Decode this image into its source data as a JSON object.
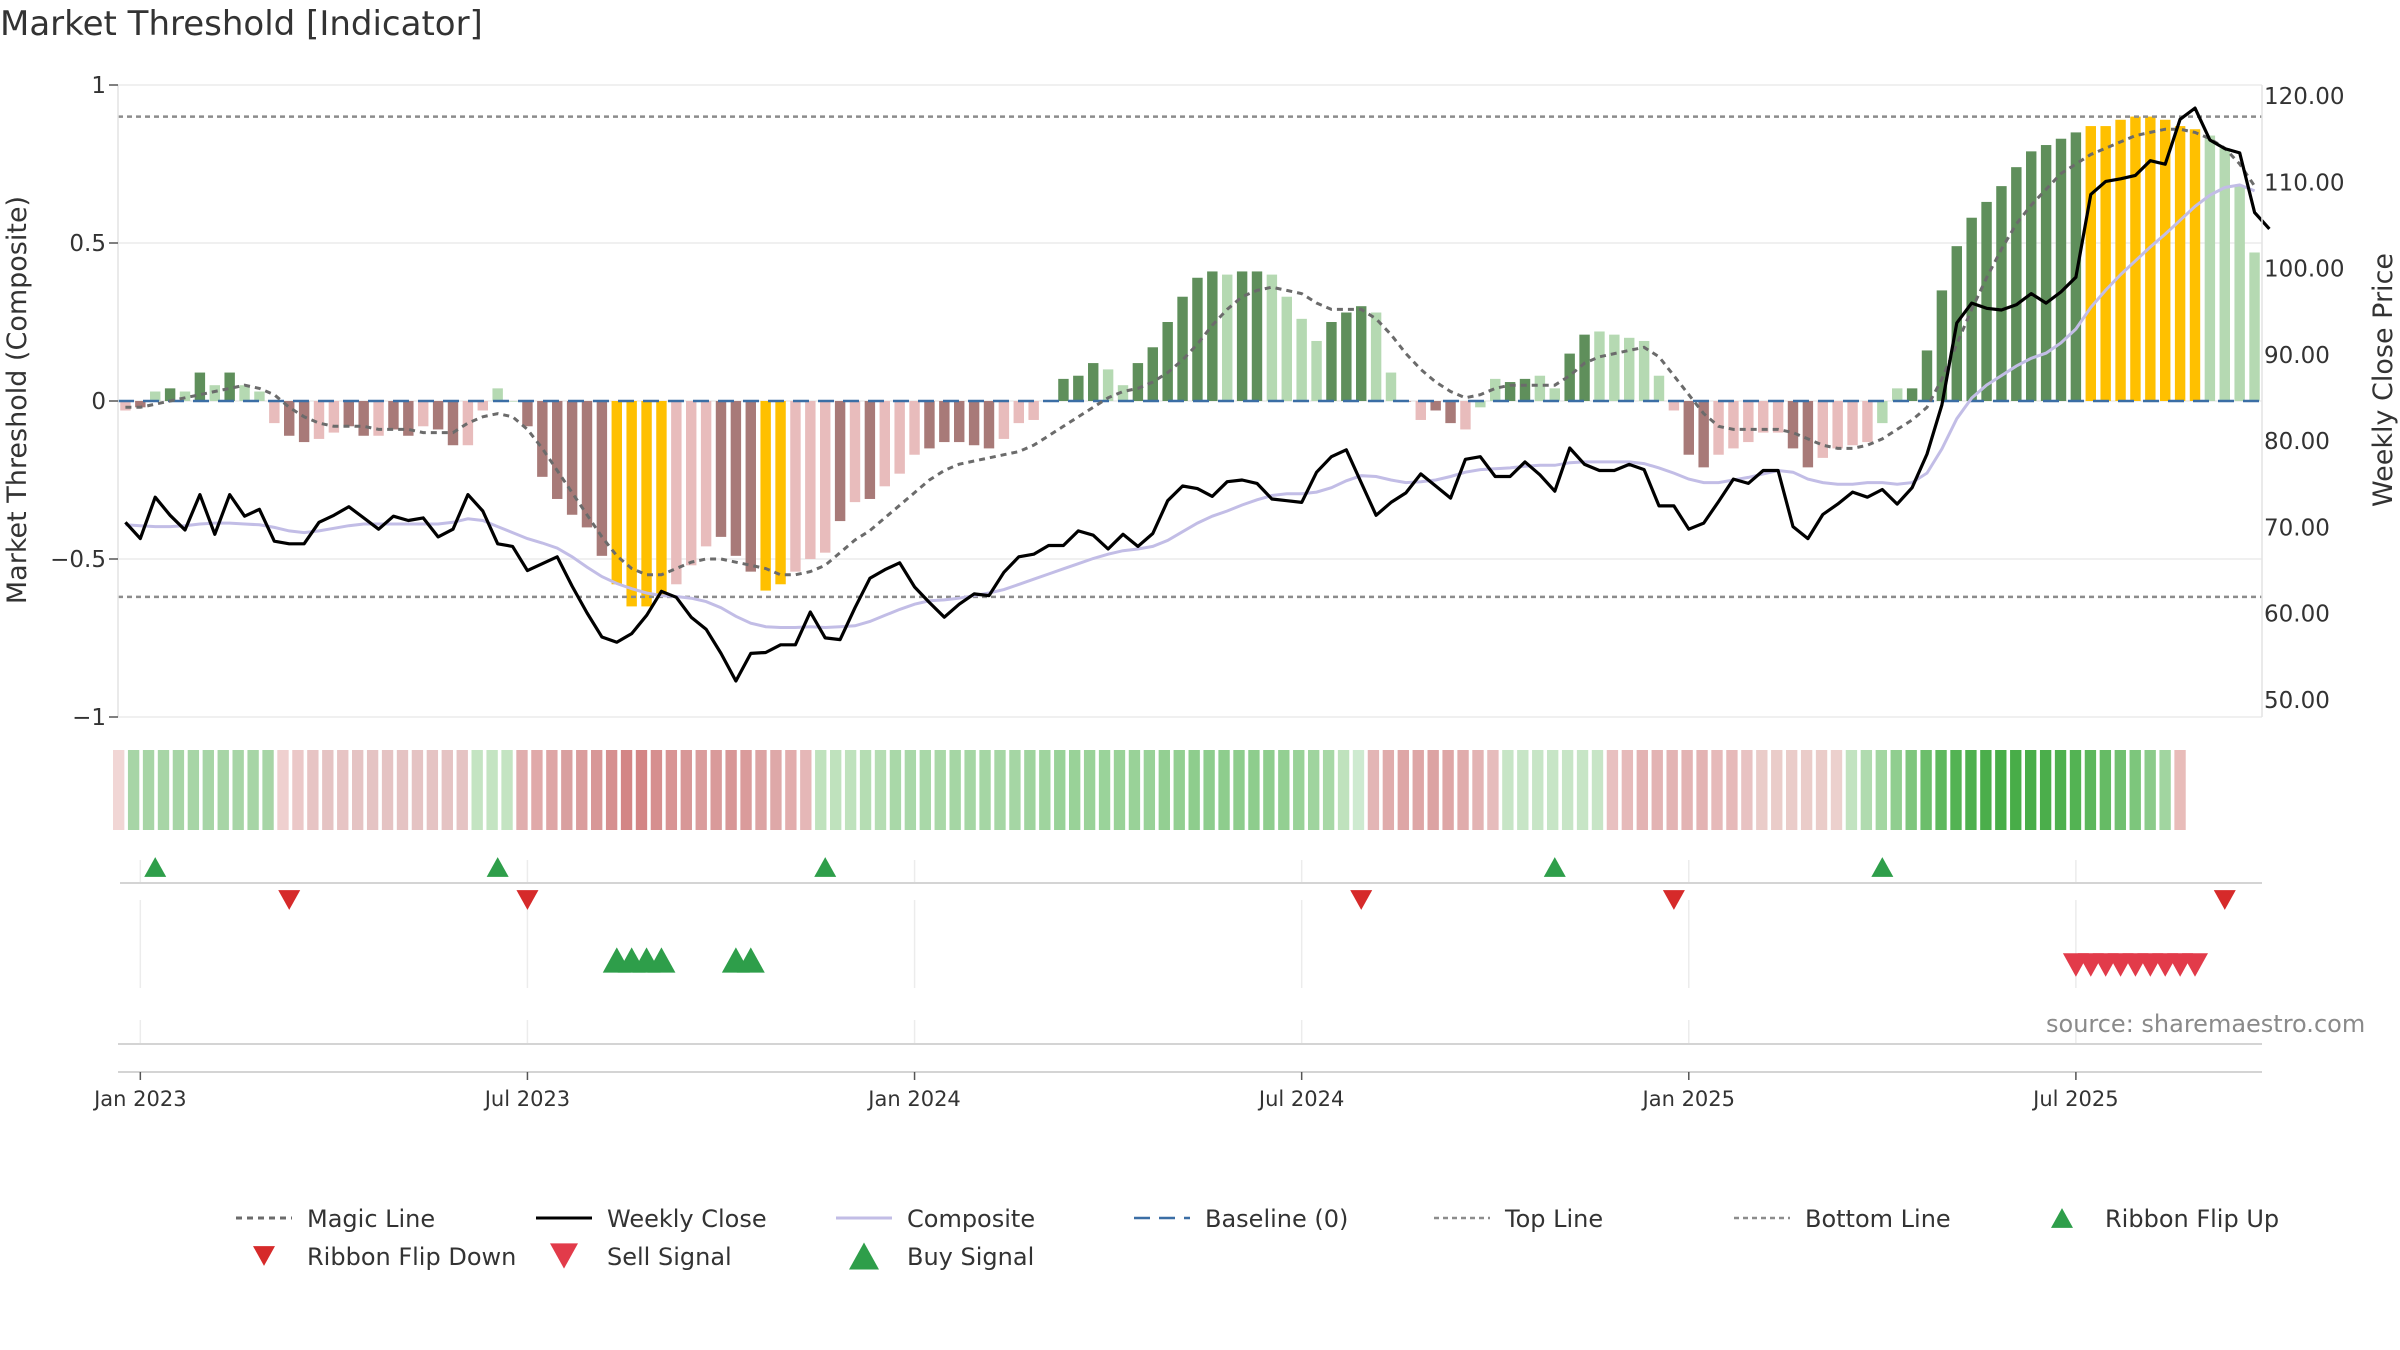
{
  "title": "Market Threshold [Indicator]",
  "source": "source: sharemaestro.com",
  "chart_data": {
    "type": "bar",
    "title": "Market Threshold [Indicator]",
    "ylabel": "Market Threshold (Composite)",
    "y2label": "Weekly Close Price",
    "ylim": [
      -1,
      1
    ],
    "y2lim": [
      47,
      122
    ],
    "y_ticks": [
      {
        "value": 1,
        "label": "1"
      },
      {
        "value": 0.5,
        "label": "0.5"
      },
      {
        "value": 0,
        "label": "0"
      },
      {
        "value": -0.5,
        "label": "−0.5"
      },
      {
        "value": -1,
        "label": "−1"
      }
    ],
    "y2_ticks": [
      {
        "value": 120,
        "label": "120.00"
      },
      {
        "value": 110,
        "label": "110.00"
      },
      {
        "value": 100,
        "label": "100.00"
      },
      {
        "value": 90,
        "label": "90.00"
      },
      {
        "value": 80,
        "label": "80.00"
      },
      {
        "value": 70,
        "label": "70.00"
      },
      {
        "value": 60,
        "label": "60.00"
      },
      {
        "value": 50,
        "label": "50.00"
      }
    ],
    "x_ticks": [
      {
        "week": 1,
        "label": "Jan 2023"
      },
      {
        "week": 27,
        "label": "Jul 2023"
      },
      {
        "week": 53,
        "label": "Jan 2024"
      },
      {
        "week": 79,
        "label": "Jul 2024"
      },
      {
        "week": 105,
        "label": "Jan 2025"
      },
      {
        "week": 131,
        "label": "Jul 2025"
      }
    ],
    "top_line": 0.9,
    "bottom_line": -0.62,
    "baseline": 0,
    "composite_bars": [
      -0.03,
      -0.02,
      0.03,
      0.04,
      0.03,
      0.09,
      0.05,
      0.09,
      0.05,
      0.03,
      -0.07,
      -0.11,
      -0.13,
      -0.12,
      -0.1,
      -0.08,
      -0.11,
      -0.11,
      -0.09,
      -0.11,
      -0.08,
      -0.09,
      -0.14,
      -0.14,
      -0.03,
      0.04,
      0.0,
      -0.08,
      -0.24,
      -0.31,
      -0.36,
      -0.4,
      -0.49,
      -0.58,
      -0.65,
      -0.65,
      -0.62,
      -0.58,
      -0.52,
      -0.46,
      -0.43,
      -0.49,
      -0.54,
      -0.6,
      -0.58,
      -0.54,
      -0.5,
      -0.48,
      -0.38,
      -0.32,
      -0.31,
      -0.27,
      -0.23,
      -0.17,
      -0.15,
      -0.13,
      -0.13,
      -0.14,
      -0.15,
      -0.12,
      -0.07,
      -0.06,
      0.0,
      0.07,
      0.08,
      0.12,
      0.1,
      0.05,
      0.12,
      0.17,
      0.25,
      0.33,
      0.39,
      0.41,
      0.4,
      0.41,
      0.41,
      0.4,
      0.33,
      0.26,
      0.19,
      0.25,
      0.28,
      0.3,
      0.28,
      0.09,
      0.0,
      -0.06,
      -0.03,
      -0.07,
      -0.09,
      -0.02,
      0.07,
      0.06,
      0.07,
      0.08,
      0.04,
      0.15,
      0.21,
      0.22,
      0.21,
      0.2,
      0.19,
      0.08,
      -0.03,
      -0.17,
      -0.21,
      -0.17,
      -0.15,
      -0.13,
      -0.1,
      -0.1,
      -0.15,
      -0.21,
      -0.18,
      -0.15,
      -0.14,
      -0.13,
      -0.07,
      0.04,
      0.04,
      0.16,
      0.35,
      0.49,
      0.58,
      0.63,
      0.68,
      0.74,
      0.79,
      0.81,
      0.83,
      0.85,
      0.87,
      0.87,
      0.89,
      0.9,
      0.9,
      0.89,
      0.87,
      0.86,
      0.84,
      0.8,
      0.68,
      0.47
    ],
    "bar_colors": [
      "#e8bcbc",
      "#a87a78",
      "#b5d9b2",
      "#5f8f5b",
      "#b5d9b2",
      "#5f8f5b",
      "#b5d9b2",
      "#5f8f5b",
      "#b5d9b2",
      "#b5d9b2",
      "#e8bcbc",
      "#a87a78",
      "#a87a78",
      "#e8bcbc",
      "#e8bcbc",
      "#a87a78",
      "#a87a78",
      "#e8bcbc",
      "#a87a78",
      "#a87a78",
      "#e8bcbc",
      "#a87a78",
      "#a87a78",
      "#e8bcbc",
      "#e8bcbc",
      "#b5d9b2",
      "#b5d9b2",
      "#a87a78",
      "#a87a78",
      "#a87a78",
      "#a87a78",
      "#a87a78",
      "#a87a78",
      "#ffc000",
      "#ffc000",
      "#ffc000",
      "#ffc000",
      "#e8bcbc",
      "#e8bcbc",
      "#e8bcbc",
      "#a87a78",
      "#a87a78",
      "#a87a78",
      "#ffc000",
      "#ffc000",
      "#e8bcbc",
      "#e8bcbc",
      "#e8bcbc",
      "#a87a78",
      "#e8bcbc",
      "#a87a78",
      "#e8bcbc",
      "#e8bcbc",
      "#e8bcbc",
      "#a87a78",
      "#a87a78",
      "#a87a78",
      "#a87a78",
      "#a87a78",
      "#e8bcbc",
      "#e8bcbc",
      "#e8bcbc",
      "#b5d9b2",
      "#5f8f5b",
      "#5f8f5b",
      "#5f8f5b",
      "#b5d9b2",
      "#b5d9b2",
      "#5f8f5b",
      "#5f8f5b",
      "#5f8f5b",
      "#5f8f5b",
      "#5f8f5b",
      "#5f8f5b",
      "#b5d9b2",
      "#5f8f5b",
      "#5f8f5b",
      "#b5d9b2",
      "#b5d9b2",
      "#b5d9b2",
      "#b5d9b2",
      "#5f8f5b",
      "#5f8f5b",
      "#5f8f5b",
      "#b5d9b2",
      "#b5d9b2",
      "#a87a78",
      "#e8bcbc",
      "#a87a78",
      "#a87a78",
      "#e8bcbc",
      "#b5d9b2",
      "#b5d9b2",
      "#5f8f5b",
      "#5f8f5b",
      "#b5d9b2",
      "#b5d9b2",
      "#5f8f5b",
      "#5f8f5b",
      "#b5d9b2",
      "#b5d9b2",
      "#b5d9b2",
      "#b5d9b2",
      "#b5d9b2",
      "#e8bcbc",
      "#a87a78",
      "#a87a78",
      "#e8bcbc",
      "#e8bcbc",
      "#e8bcbc",
      "#e8bcbc",
      "#e8bcbc",
      "#a87a78",
      "#a87a78",
      "#e8bcbc",
      "#e8bcbc",
      "#e8bcbc",
      "#e8bcbc",
      "#b5d9b2",
      "#b5d9b2",
      "#5f8f5b",
      "#5f8f5b",
      "#5f8f5b",
      "#5f8f5b",
      "#5f8f5b",
      "#5f8f5b",
      "#5f8f5b",
      "#5f8f5b",
      "#5f8f5b",
      "#5f8f5b",
      "#5f8f5b",
      "#5f8f5b",
      "#ffc000",
      "#ffc000",
      "#ffc000",
      "#ffc000",
      "#ffc000",
      "#ffc000",
      "#ffc000",
      "#ffc000",
      "#b5d9b2",
      "#b5d9b2",
      "#b5d9b2",
      "#b5d9b2",
      "#b5d9b2"
    ],
    "weekly_close": [
      70.6,
      68.7,
      73.5,
      71.4,
      69.7,
      73.8,
      69.2,
      73.8,
      71.3,
      72.1,
      68.4,
      68.1,
      68.1,
      70.6,
      71.4,
      72.4,
      71.1,
      69.8,
      71.3,
      70.8,
      71.1,
      68.9,
      69.8,
      73.8,
      71.9,
      68.1,
      67.8,
      65.0,
      65.8,
      66.6,
      63.2,
      60.1,
      57.3,
      56.7,
      57.7,
      59.8,
      62.6,
      61.9,
      59.6,
      58.2,
      55.4,
      52.2,
      55.4,
      55.5,
      56.4,
      56.4,
      60.2,
      57.2,
      57.0,
      60.7,
      64.1,
      65.1,
      65.9,
      63.1,
      61.3,
      59.6,
      61.1,
      62.3,
      62.1,
      64.8,
      66.6,
      66.9,
      67.9,
      67.9,
      69.6,
      69.1,
      67.5,
      69.2,
      67.8,
      69.3,
      73.1,
      74.8,
      74.5,
      73.6,
      75.3,
      75.5,
      75.1,
      73.3,
      73.1,
      72.9,
      76.4,
      78.2,
      79.0,
      75.2,
      71.4,
      72.9,
      74.0,
      76.2,
      74.8,
      73.4,
      77.9,
      78.2,
      75.9,
      75.9,
      77.6,
      76.1,
      74.2,
      79.2,
      77.3,
      76.6,
      76.6,
      77.3,
      76.7,
      72.5,
      72.5,
      69.8,
      70.5,
      73.0,
      75.6,
      75.1,
      76.6,
      76.6,
      70.1,
      68.7,
      71.5,
      72.7,
      74.1,
      73.5,
      74.4,
      72.7,
      74.6,
      78.5,
      84.2,
      93.7,
      96.0,
      95.4,
      95.2,
      95.8,
      97.1,
      96.0,
      97.3,
      99.0,
      108.6,
      110.1,
      110.4,
      110.8,
      112.5,
      112.1,
      117.3,
      118.6,
      114.9,
      113.9,
      113.4,
      106.5,
      104.6
    ],
    "composite_line": [
      70.3,
      70.2,
      70.1,
      70.1,
      70.2,
      70.4,
      70.5,
      70.5,
      70.4,
      70.3,
      70.0,
      69.6,
      69.4,
      69.6,
      69.9,
      70.2,
      70.4,
      70.4,
      70.4,
      70.4,
      70.4,
      70.4,
      70.6,
      71.0,
      70.8,
      70.1,
      69.4,
      68.7,
      68.2,
      67.6,
      66.6,
      65.4,
      64.3,
      63.5,
      62.9,
      62.4,
      62.1,
      62.0,
      61.8,
      61.4,
      60.7,
      59.7,
      58.9,
      58.5,
      58.4,
      58.4,
      58.5,
      58.4,
      58.5,
      58.6,
      59.1,
      59.8,
      60.5,
      61.1,
      61.5,
      61.6,
      61.8,
      62.1,
      62.4,
      62.8,
      63.4,
      64.0,
      64.6,
      65.2,
      65.8,
      66.4,
      66.9,
      67.3,
      67.5,
      67.8,
      68.5,
      69.5,
      70.5,
      71.3,
      71.9,
      72.6,
      73.2,
      73.7,
      73.9,
      73.9,
      74.1,
      74.6,
      75.4,
      76.0,
      75.9,
      75.5,
      75.2,
      75.3,
      75.5,
      75.9,
      76.4,
      76.7,
      76.8,
      76.9,
      77.1,
      77.2,
      77.2,
      77.5,
      77.6,
      77.6,
      77.6,
      77.6,
      77.4,
      76.9,
      76.3,
      75.6,
      75.2,
      75.2,
      75.5,
      75.8,
      76.2,
      76.6,
      76.4,
      75.6,
      75.2,
      75.0,
      75.0,
      75.2,
      75.2,
      75.0,
      75.2,
      76.3,
      79.1,
      82.6,
      85.0,
      86.5,
      87.6,
      88.7,
      89.6,
      90.2,
      91.4,
      93.0,
      95.5,
      97.5,
      99.3,
      100.9,
      102.5,
      104.0,
      105.6,
      107.2,
      108.5,
      109.4,
      109.7,
      109.0
    ],
    "magic_line": [
      -0.02,
      -0.02,
      -0.01,
      0.0,
      0.01,
      0.02,
      0.03,
      0.04,
      0.05,
      0.04,
      0.02,
      -0.02,
      -0.05,
      -0.07,
      -0.08,
      -0.08,
      -0.08,
      -0.09,
      -0.09,
      -0.09,
      -0.1,
      -0.1,
      -0.1,
      -0.07,
      -0.05,
      -0.04,
      -0.05,
      -0.09,
      -0.15,
      -0.22,
      -0.29,
      -0.36,
      -0.43,
      -0.49,
      -0.53,
      -0.55,
      -0.55,
      -0.53,
      -0.51,
      -0.5,
      -0.5,
      -0.51,
      -0.52,
      -0.53,
      -0.55,
      -0.55,
      -0.54,
      -0.52,
      -0.48,
      -0.44,
      -0.41,
      -0.37,
      -0.33,
      -0.29,
      -0.25,
      -0.22,
      -0.2,
      -0.19,
      -0.18,
      -0.17,
      -0.16,
      -0.14,
      -0.11,
      -0.08,
      -0.05,
      -0.02,
      0.01,
      0.03,
      0.04,
      0.06,
      0.09,
      0.13,
      0.18,
      0.24,
      0.29,
      0.33,
      0.35,
      0.36,
      0.35,
      0.34,
      0.31,
      0.29,
      0.29,
      0.29,
      0.26,
      0.21,
      0.15,
      0.1,
      0.06,
      0.03,
      0.01,
      0.02,
      0.04,
      0.05,
      0.05,
      0.05,
      0.05,
      0.08,
      0.12,
      0.14,
      0.15,
      0.16,
      0.17,
      0.14,
      0.08,
      0.02,
      -0.04,
      -0.08,
      -0.09,
      -0.09,
      -0.09,
      -0.09,
      -0.1,
      -0.12,
      -0.14,
      -0.15,
      -0.15,
      -0.14,
      -0.12,
      -0.09,
      -0.06,
      -0.02,
      0.07,
      0.18,
      0.29,
      0.39,
      0.48,
      0.56,
      0.62,
      0.67,
      0.72,
      0.75,
      0.78,
      0.8,
      0.82,
      0.84,
      0.85,
      0.86,
      0.86,
      0.85,
      0.83,
      0.8,
      0.75,
      0.68
    ],
    "ribbon_colors": [
      "#f1d6d5",
      "#a7d5a6",
      "#a7d5a6",
      "#a7d5a6",
      "#a7d5a6",
      "#a7d5a6",
      "#a7d5a6",
      "#a7d5a6",
      "#a7d5a6",
      "#a7d5a6",
      "#a7d5a6",
      "#efd0cf",
      "#ebc8c8",
      "#e7c4c4",
      "#e5c3c3",
      "#e7c4c4",
      "#e5c3c3",
      "#e5c3c3",
      "#e5c3c3",
      "#e5c3c3",
      "#e5c3c3",
      "#e5c3c3",
      "#e5c3c3",
      "#e5c3c3",
      "#c4e4c2",
      "#c4e4c2",
      "#c4e4c2",
      "#e0aeae",
      "#e0a9a9",
      "#dea5a5",
      "#d9a0a0",
      "#da9d9d",
      "#d89797",
      "#d68f8f",
      "#d38585",
      "#d38585",
      "#d68f8f",
      "#d89494",
      "#d89797",
      "#da9c9c",
      "#d99a9a",
      "#d89696",
      "#da9b9b",
      "#dca3a3",
      "#dea8a8",
      "#e2adad",
      "#e5b7b7",
      "#bfe2bd",
      "#bfe2bd",
      "#bfe2bd",
      "#b5ddb3",
      "#b5ddb3",
      "#a9d8a8",
      "#a9d8a8",
      "#a9d8a8",
      "#a9d8a8",
      "#a5d6a4",
      "#a5d6a4",
      "#a5d6a4",
      "#a5d6a4",
      "#a5d6a4",
      "#9fd49e",
      "#9fd49e",
      "#99d298",
      "#99d298",
      "#99d298",
      "#9ad39a",
      "#99d298",
      "#99d298",
      "#99d298",
      "#93cf92",
      "#93cf92",
      "#8ecd8d",
      "#8ecd8d",
      "#8ecd8d",
      "#8ecd8d",
      "#8ecd8d",
      "#8ecd8d",
      "#93cf92",
      "#99d298",
      "#9fd49e",
      "#a7d8a6",
      "#bfe2bd",
      "#ceead0",
      "#e3b5b5",
      "#e0acac",
      "#dea6a6",
      "#dea6a6",
      "#dca3a3",
      "#dea6a6",
      "#e0acac",
      "#e3b3b3",
      "#e6bcbc",
      "#c7e5c6",
      "#c7e5c6",
      "#c7e5c6",
      "#c7e5c6",
      "#c7e5c6",
      "#c7e5c6",
      "#c7e5c6",
      "#e8c0c0",
      "#e6baba",
      "#e3b3b3",
      "#e3b3b3",
      "#e3b3b3",
      "#e3b3b3",
      "#e3b3b3",
      "#e6b9b9",
      "#e6b9b9",
      "#e8c2c2",
      "#eaccc9",
      "#eaccc9",
      "#eaccc9",
      "#eaccc9",
      "#eaccc9",
      "#ecd0cd",
      "#c2e3c0",
      "#b0dbaf",
      "#a3d6a2",
      "#90ce8f",
      "#7ec67d",
      "#6cbe6b",
      "#5eb85d",
      "#53b353",
      "#4eb04e",
      "#4bae4b",
      "#48ad48",
      "#48ad48",
      "#48ad48",
      "#4bae4b",
      "#4eb04e",
      "#53b353",
      "#5cb75c",
      "#66bb65",
      "#71c070",
      "#7dc67c",
      "#8bcb8a",
      "#a1d5a0",
      "#e8bcb9"
    ],
    "signals": {
      "ribbon_flip_up": [
        2,
        25,
        47,
        96,
        118
      ],
      "ribbon_flip_down": [
        11,
        27,
        83,
        104,
        141
      ],
      "buy_signal": [
        33,
        34,
        35,
        36,
        41,
        42
      ],
      "sell_signal": [
        131,
        132,
        133,
        134,
        135,
        136,
        137,
        138,
        139
      ]
    },
    "colors": {
      "strong_up": "#5f8f5b",
      "weak_up": "#b5d9b2",
      "strong_down": "#a87a78",
      "weak_down": "#e8bcbc",
      "extreme": "#ffc000",
      "weekly_close": "#000000",
      "composite_line": "#c2bde6",
      "magic_line": "#6b6b6b",
      "baseline": "#3b6ea5",
      "threshold_lines": "#8c8c8c",
      "flip_up": "#2e9e4a",
      "flip_down": "#d62a2a",
      "sell_signal": "#e23b4a",
      "buy_signal": "#2e9e4a"
    },
    "legend": [
      {
        "key": "magic",
        "label": "Magic Line"
      },
      {
        "key": "close",
        "label": "Weekly Close"
      },
      {
        "key": "composite",
        "label": "Composite"
      },
      {
        "key": "baseline",
        "label": "Baseline (0)"
      },
      {
        "key": "top",
        "label": "Top Line"
      },
      {
        "key": "bottom",
        "label": "Bottom Line"
      },
      {
        "key": "flip_up",
        "label": "Ribbon Flip Up"
      },
      {
        "key": "flip_down",
        "label": "Ribbon Flip Down"
      },
      {
        "key": "sell",
        "label": "Sell Signal"
      },
      {
        "key": "buy",
        "label": "Buy Signal"
      }
    ]
  }
}
